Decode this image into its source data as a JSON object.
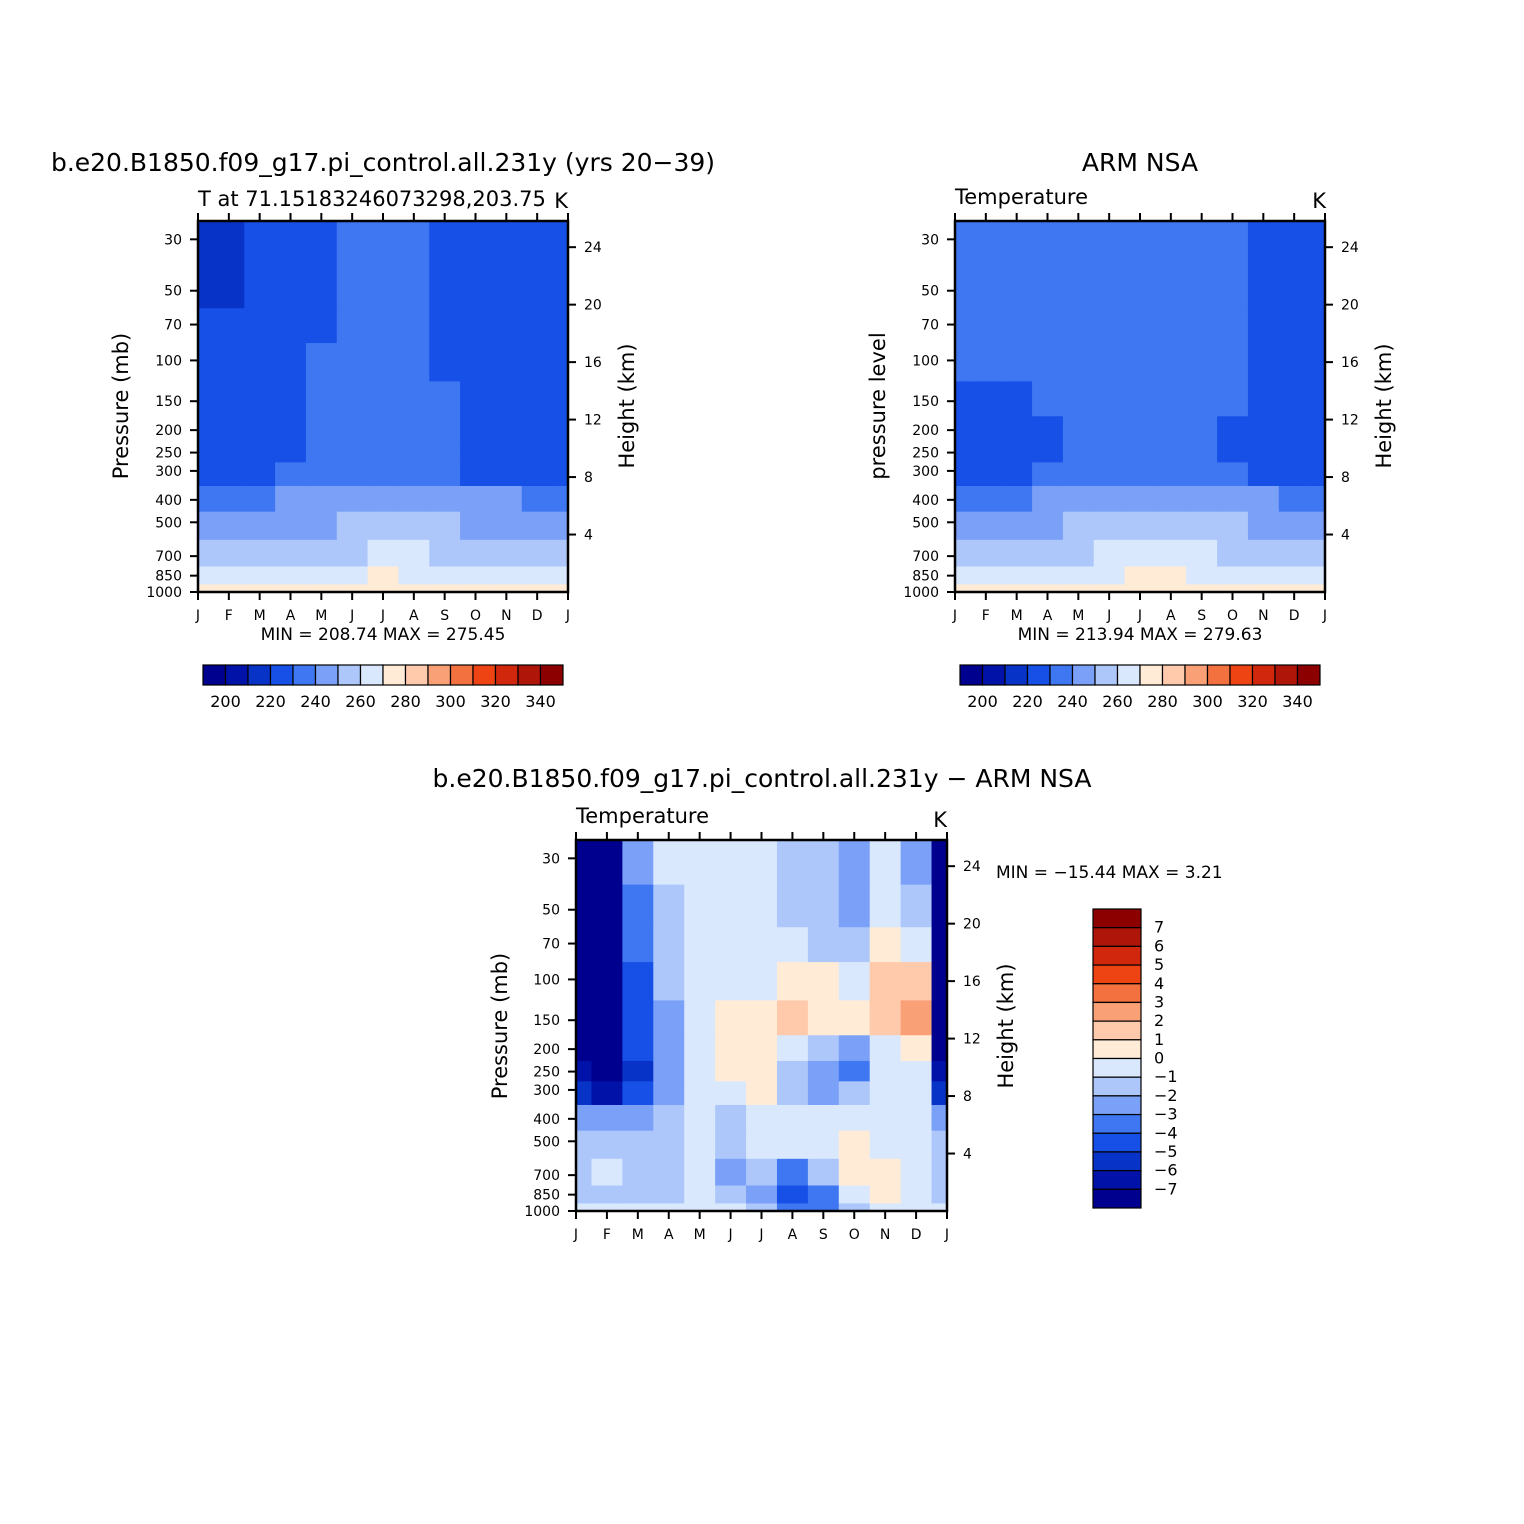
{
  "chart_data": [
    {
      "type": "heatmap",
      "title": "b.e20.B1850.f09_g17.pi_control.all.231y (yrs 20−39)",
      "subtitle_left": "T at 71.15183246073298,203.75",
      "subtitle_right": "K",
      "ylabel": "Pressure  (mb)",
      "ylabel_right": "Height  (km)",
      "x_ticks": [
        "J",
        "F",
        "M",
        "A",
        "M",
        "J",
        "J",
        "A",
        "S",
        "O",
        "N",
        "D",
        "J"
      ],
      "y_ticks": [
        30,
        50,
        70,
        100,
        150,
        200,
        250,
        300,
        400,
        500,
        700,
        850,
        1000
      ],
      "y_right_ticks": [
        24,
        20,
        16,
        12,
        8,
        4
      ],
      "ylim": [
        1000,
        25
      ],
      "stats": "MIN =  208.74  MAX =  275.45",
      "colorbar": {
        "orientation": "horizontal",
        "labels": [
          "200",
          "220",
          "240",
          "260",
          "280",
          "300",
          "320",
          "340"
        ],
        "colors": [
          "#00008f",
          "#0012a8",
          "#0833c7",
          "#1650e6",
          "#3f77f2",
          "#7aa0f7",
          "#adc7fb",
          "#d9e8fd",
          "#ffebd6",
          "#ffc9ab",
          "#f9a077",
          "#f3703f",
          "#ee4414",
          "#d1280d",
          "#b01509",
          "#8c0000"
        ]
      },
      "levels": [
        260,
        255,
        248,
        240,
        234,
        226,
        219
      ],
      "values": [
        [
          275,
          275,
          275,
          273,
          274,
          275,
          276,
          275,
          273,
          272,
          273,
          274,
          275
        ],
        [
          263,
          263,
          264,
          265,
          266,
          268,
          270,
          269,
          268,
          266,
          264,
          263,
          263
        ],
        [
          255,
          255,
          256,
          257,
          258,
          259,
          261,
          260,
          259,
          258,
          257,
          256,
          255
        ],
        [
          247,
          247,
          247,
          248,
          249,
          250,
          251,
          250,
          250,
          249,
          248,
          247,
          247
        ],
        [
          239,
          239,
          239,
          240,
          241,
          242,
          243,
          243,
          242,
          241,
          240,
          239,
          239
        ],
        [
          225,
          225,
          225,
          231,
          234,
          234,
          234,
          233,
          232,
          229,
          225,
          225,
          225
        ],
        [
          223,
          223,
          223,
          227,
          233,
          234,
          234,
          234,
          232,
          226,
          223,
          223,
          223
        ],
        [
          222,
          222,
          222,
          225,
          232,
          234,
          234,
          234,
          232,
          227,
          223,
          222,
          222
        ],
        [
          221,
          221,
          222,
          224,
          232,
          234,
          234,
          234,
          230,
          228,
          225,
          222,
          222
        ],
        [
          221,
          221,
          221,
          224,
          230,
          232,
          233,
          232,
          228,
          226,
          224,
          221,
          221
        ],
        [
          220,
          220,
          221,
          223,
          229,
          232,
          233,
          232,
          227,
          225,
          222,
          220,
          220
        ],
        [
          218,
          218,
          221,
          224,
          229,
          232,
          233,
          232,
          228,
          224,
          222,
          221,
          221
        ],
        [
          217,
          217,
          221,
          225,
          229,
          232,
          231,
          232,
          228,
          224,
          222,
          221,
          221
        ]
      ]
    },
    {
      "type": "heatmap",
      "title": "ARM NSA",
      "subtitle_left": "Temperature",
      "subtitle_right": "K",
      "ylabel": "pressure  level",
      "ylabel_right": "Height  (km)",
      "x_ticks": [
        "J",
        "F",
        "M",
        "A",
        "M",
        "J",
        "J",
        "A",
        "S",
        "O",
        "N",
        "D",
        "J"
      ],
      "y_ticks": [
        30,
        50,
        70,
        100,
        150,
        200,
        250,
        300,
        400,
        500,
        700,
        850,
        1000
      ],
      "y_right_ticks": [
        24,
        20,
        16,
        12,
        8,
        4
      ],
      "ylim": [
        1000,
        25
      ],
      "stats": "MIN =  213.94  MAX =  279.63",
      "colorbar": {
        "orientation": "horizontal",
        "labels": [
          "200",
          "220",
          "240",
          "260",
          "280",
          "300",
          "320",
          "340"
        ],
        "colors": [
          "#00008f",
          "#0012a8",
          "#0833c7",
          "#1650e6",
          "#3f77f2",
          "#7aa0f7",
          "#adc7fb",
          "#d9e8fd",
          "#ffebd6",
          "#ffc9ab",
          "#f9a077",
          "#f3703f",
          "#ee4414",
          "#d1280d",
          "#b01509",
          "#8c0000"
        ]
      },
      "levels": [
        260,
        255,
        248,
        240,
        234,
        226,
        219
      ],
      "values": [
        [
          278,
          278,
          278,
          277,
          277,
          279,
          279,
          279,
          277,
          276,
          277,
          278,
          278
        ],
        [
          264,
          264,
          265,
          266,
          267,
          269,
          271,
          270,
          269,
          267,
          265,
          264,
          264
        ],
        [
          256,
          256,
          256,
          257,
          258,
          260,
          262,
          261,
          260,
          258,
          257,
          256,
          256
        ],
        [
          248,
          248,
          248,
          249,
          250,
          251,
          252,
          251,
          251,
          250,
          249,
          248,
          248
        ],
        [
          238,
          238,
          239,
          240,
          241,
          243,
          244,
          243,
          242,
          241,
          240,
          239,
          239
        ],
        [
          224,
          224,
          224,
          231,
          234,
          235,
          235,
          235,
          233,
          230,
          225,
          224,
          224
        ],
        [
          225,
          225,
          225,
          228,
          234,
          235,
          235,
          235,
          233,
          227,
          224,
          224,
          224
        ],
        [
          227,
          227,
          227,
          229,
          234,
          235,
          235,
          235,
          234,
          228,
          224,
          224,
          224
        ],
        [
          229,
          229,
          229,
          230,
          234,
          235,
          235,
          235,
          234,
          230,
          225,
          224,
          224
        ],
        [
          232,
          232,
          232,
          232,
          234,
          235,
          235,
          235,
          234,
          231,
          226,
          225,
          225
        ],
        [
          234,
          234,
          234,
          234,
          235,
          235,
          235,
          235,
          234,
          232,
          227,
          225,
          225
        ],
        [
          235,
          235,
          235,
          235,
          235,
          235,
          235,
          235,
          234,
          233,
          228,
          225,
          225
        ],
        [
          235,
          235,
          235,
          235,
          235,
          235,
          235,
          235,
          234,
          233,
          228,
          225,
          225
        ]
      ]
    },
    {
      "type": "heatmap",
      "title": "b.e20.B1850.f09_g17.pi_control.all.231y − ARM NSA",
      "subtitle_left": "Temperature",
      "subtitle_right": "K",
      "ylabel": "Pressure  (mb)",
      "ylabel_right": "Height  (km)",
      "x_ticks": [
        "J",
        "F",
        "M",
        "A",
        "M",
        "J",
        "J",
        "A",
        "S",
        "O",
        "N",
        "D",
        "J"
      ],
      "y_ticks": [
        30,
        50,
        70,
        100,
        150,
        200,
        250,
        300,
        400,
        500,
        700,
        850,
        1000
      ],
      "y_right_ticks": [
        24,
        20,
        16,
        12,
        8,
        4
      ],
      "ylim": [
        1000,
        25
      ],
      "stats": "MIN = −15.44  MAX =     3.21",
      "colorbar": {
        "orientation": "vertical",
        "labels": [
          "7",
          "6",
          "5",
          "4",
          "3",
          "2",
          "1",
          "0",
          "−1",
          "−2",
          "−3",
          "−4",
          "−5",
          "−6",
          "−7"
        ],
        "colors": [
          "#8c0000",
          "#b01509",
          "#d1280d",
          "#ee4414",
          "#f3703f",
          "#f9a077",
          "#ffc9ab",
          "#ffebd6",
          "#d9e8fd",
          "#adc7fb",
          "#7aa0f7",
          "#3f77f2",
          "#1650e6",
          "#0833c7",
          "#0012a8",
          "#00008f"
        ]
      },
      "levels": [
        7,
        6,
        5,
        4,
        3,
        2,
        1,
        0,
        -1,
        -2,
        -3,
        -4,
        -5,
        -6,
        -7
      ],
      "values": [
        [
          -0.5,
          -0.5,
          -0.8,
          -0.6,
          -0.5,
          -0.6,
          -1.2,
          -3.5,
          -3.8,
          -1.5,
          -0.8,
          -0.5,
          -0.5
        ],
        [
          -1.5,
          -1.3,
          -1.5,
          -1.5,
          -0.8,
          -1.4,
          -2.5,
          -4.8,
          -3.5,
          -0.3,
          0.8,
          -0.8,
          -1.5
        ],
        [
          -1.2,
          -1.0,
          -1.2,
          -1.2,
          -0.8,
          -2.6,
          -1.5,
          -3.5,
          -2.0,
          0.6,
          0.4,
          -0.5,
          -1.2
        ],
        [
          -2.0,
          -1.6,
          -2.0,
          -1.5,
          -1.0,
          -1.5,
          -1.0,
          -1.0,
          -0.4,
          0.5,
          -0.4,
          -0.8,
          -2.0
        ],
        [
          -2.8,
          -2.5,
          -3.0,
          -1.8,
          -1.0,
          -1.5,
          -1.0,
          -1.0,
          -0.5,
          -0.3,
          -0.5,
          -1.0,
          -2.8
        ],
        [
          -6.0,
          -7.0,
          -5.0,
          -3.0,
          -1.0,
          -0.5,
          0.4,
          -1.5,
          -2.5,
          -1.5,
          -0.5,
          -1.0,
          -6.0
        ],
        [
          -7.0,
          -8.0,
          -5.5,
          -3.0,
          -1.0,
          0.2,
          0.3,
          -1.2,
          -3.0,
          -3.5,
          -0.5,
          -1.0,
          -7.0
        ],
        [
          -8.0,
          -9.0,
          -5.0,
          -2.5,
          -1.0,
          0.5,
          0.5,
          -0.5,
          -1.5,
          -2.5,
          -0.5,
          0.8,
          -8.0
        ],
        [
          -8.5,
          -9.0,
          -5.0,
          -2.5,
          -1.0,
          0.2,
          0.6,
          1.2,
          0.5,
          0.3,
          1.2,
          2.5,
          -8.5
        ],
        [
          -9.0,
          -9.0,
          -4.5,
          -2.0,
          -1.0,
          -0.5,
          -0.5,
          0.5,
          0.4,
          -0.5,
          1.5,
          1.2,
          -9.0
        ],
        [
          -9.5,
          -9.0,
          -4.0,
          -2.0,
          -1.0,
          -0.5,
          -0.8,
          -0.8,
          -1.5,
          -2.0,
          0.5,
          -1.0,
          -9.5
        ],
        [
          -9.5,
          -9.5,
          -3.5,
          -1.5,
          -0.5,
          -0.5,
          -1.0,
          -1.5,
          -2.0,
          -2.5,
          -0.5,
          -2.0,
          -9.5
        ],
        [
          -9.0,
          -9.0,
          -3.0,
          -1.0,
          -0.5,
          -0.5,
          -1.0,
          -1.2,
          -1.5,
          -3.0,
          -1.0,
          -3.0,
          -9.0
        ]
      ]
    }
  ]
}
